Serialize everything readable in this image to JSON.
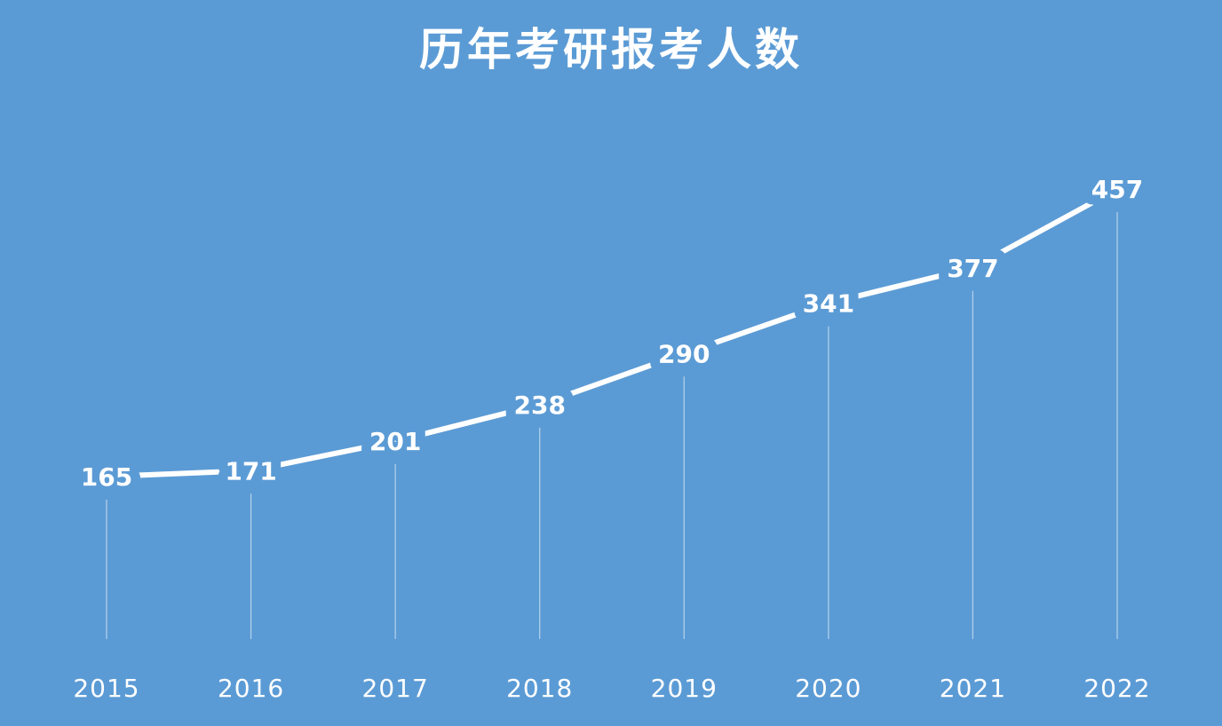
{
  "chart_data": {
    "type": "line",
    "title": "历年考研报考人数",
    "categories": [
      "2015",
      "2016",
      "2017",
      "2018",
      "2019",
      "2020",
      "2021",
      "2022"
    ],
    "series": [
      {
        "color": "#ffffff",
        "values": [
          165,
          171,
          201,
          238,
          290,
          341,
          377,
          457
        ]
      }
    ]
  }
}
